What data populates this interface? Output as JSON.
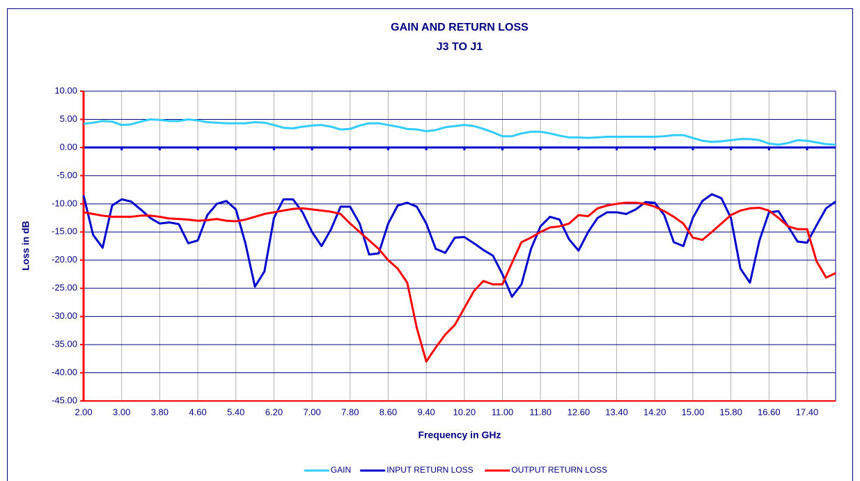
{
  "chart_data": {
    "type": "line",
    "title": "GAIN AND RETURN LOSS",
    "subtitle": "J3 TO J1",
    "x_label": "Frequency in GHz",
    "y_label": "Loss in dB",
    "categories": [
      "2.00",
      null,
      null,
      null,
      "3.00",
      null,
      null,
      null,
      "3.80",
      null,
      null,
      null,
      "4.60",
      null,
      null,
      null,
      "5.40",
      null,
      null,
      null,
      "6.20",
      null,
      null,
      null,
      "7.00",
      null,
      null,
      null,
      "7.80",
      null,
      null,
      null,
      "8.60",
      null,
      null,
      null,
      "9.40",
      null,
      null,
      null,
      "10.20",
      null,
      null,
      null,
      "11.00",
      null,
      null,
      null,
      "11.80",
      null,
      null,
      null,
      "12.60",
      null,
      null,
      null,
      "13.40",
      null,
      null,
      null,
      "14.20",
      null,
      null,
      null,
      "15.00",
      null,
      null,
      null,
      "15.80",
      null,
      null,
      null,
      "16.60",
      null,
      null,
      null,
      "17.40",
      null,
      null,
      null
    ],
    "series": [
      {
        "name": "GAIN",
        "color": "#33ccff",
        "values": [
          4.2,
          4.4,
          4.7,
          4.6,
          4.0,
          4.1,
          4.6,
          5.0,
          4.9,
          4.7,
          4.7,
          5.0,
          4.8,
          4.5,
          4.4,
          4.3,
          4.3,
          4.3,
          4.5,
          4.4,
          4.0,
          3.5,
          3.4,
          3.7,
          3.9,
          4.0,
          3.7,
          3.2,
          3.3,
          3.9,
          4.3,
          4.3,
          4.0,
          3.7,
          3.3,
          3.2,
          2.9,
          3.1,
          3.6,
          3.8,
          4.0,
          3.8,
          3.3,
          2.7,
          2.0,
          2.0,
          2.5,
          2.8,
          2.8,
          2.5,
          2.1,
          1.8,
          1.8,
          1.7,
          1.8,
          1.9,
          1.9,
          1.9,
          1.9,
          1.9,
          1.9,
          2.0,
          2.2,
          2.2,
          1.7,
          1.2,
          1.0,
          1.1,
          1.3,
          1.5,
          1.5,
          1.3,
          0.7,
          0.5,
          0.8,
          1.3,
          1.2,
          0.9,
          0.6,
          0.5
        ]
      },
      {
        "name": "INPUT RETURN LOSS",
        "color": "#0000cc",
        "values": [
          -8.5,
          -15.5,
          -17.8,
          -10.3,
          -9.2,
          -9.6,
          -11,
          -12.5,
          -13.5,
          -13.3,
          -13.6,
          -17,
          -16.5,
          -12,
          -10,
          -9.5,
          -11,
          -17,
          -24.7,
          -22,
          -12.5,
          -9.2,
          -9.2,
          -11.5,
          -15,
          -17.5,
          -14.5,
          -10.5,
          -10.5,
          -13.5,
          -19,
          -18.8,
          -13.5,
          -10.3,
          -9.8,
          -10.5,
          -13.5,
          -18,
          -18.7,
          -16,
          -15.9,
          -17,
          -18.2,
          -19.2,
          -22.5,
          -26.5,
          -24.3,
          -18,
          -14,
          -12.3,
          -12.8,
          -16.3,
          -18.3,
          -15,
          -12.5,
          -11.5,
          -11.5,
          -11.8,
          -11,
          -9.7,
          -9.8,
          -12,
          -16.8,
          -17.5,
          -12.5,
          -9.5,
          -8.3,
          -9,
          -12.5,
          -21.5,
          -24,
          -16.5,
          -11.5,
          -11.3,
          -14,
          -16.7,
          -16.9,
          -13.8,
          -10.8,
          -9.6
        ]
      },
      {
        "name": "OUTPUT RETURN LOSS",
        "color": "#ff0000",
        "values": [
          -11.5,
          -11.8,
          -12.1,
          -12.3,
          -12.3,
          -12.3,
          -12.1,
          -12.1,
          -12.3,
          -12.6,
          -12.7,
          -12.8,
          -13,
          -12.9,
          -12.7,
          -13,
          -13.1,
          -12.8,
          -12.3,
          -11.8,
          -11.5,
          -11.2,
          -10.9,
          -10.8,
          -11,
          -11.2,
          -11.4,
          -11.8,
          -13.5,
          -15,
          -16.5,
          -18,
          -20,
          -21.5,
          -24,
          -32,
          -38,
          -35.5,
          -33.2,
          -31.5,
          -28.5,
          -25.5,
          -23.7,
          -24.3,
          -24.3,
          -20.5,
          -16.8,
          -16,
          -15,
          -14.2,
          -14,
          -13.5,
          -12,
          -12.2,
          -10.8,
          -10.3,
          -10,
          -9.8,
          -9.8,
          -10,
          -10.5,
          -11.3,
          -12.3,
          -13.5,
          -16,
          -16.4,
          -15,
          -13.5,
          -12,
          -11.2,
          -10.8,
          -10.7,
          -11.2,
          -12.5,
          -14,
          -14.5,
          -14.5,
          -20.2,
          -23.1,
          -22.3
        ]
      }
    ],
    "ylim": [
      -45,
      10
    ],
    "yticks": [
      {
        "value": 10,
        "label": "10.00"
      },
      {
        "value": 5,
        "label": "5.00"
      },
      {
        "value": 0,
        "label": "0.00"
      },
      {
        "value": -5,
        "label": "-5.00"
      },
      {
        "value": -10,
        "label": "-10.00"
      },
      {
        "value": -15,
        "label": "-15.00"
      },
      {
        "value": -20,
        "label": "-20.00"
      },
      {
        "value": -25,
        "label": "-25.00"
      },
      {
        "value": -30,
        "label": "-30.00"
      },
      {
        "value": -35,
        "label": "-35.00"
      },
      {
        "value": -40,
        "label": "-40.00"
      },
      {
        "value": -45,
        "label": "-45.00"
      }
    ],
    "grid": true,
    "legend": "bottom"
  }
}
